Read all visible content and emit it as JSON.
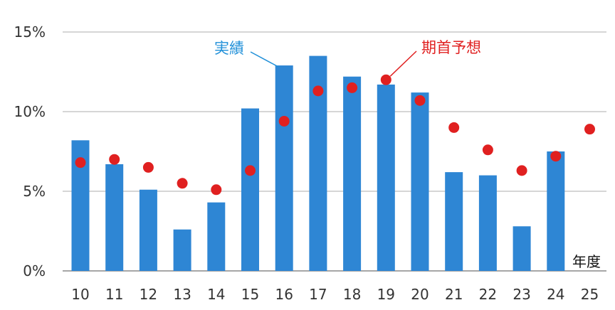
{
  "chart_data": {
    "type": "bar",
    "categories": [
      "10",
      "11",
      "12",
      "13",
      "14",
      "15",
      "16",
      "17",
      "18",
      "19",
      "20",
      "21",
      "22",
      "23",
      "24",
      "25"
    ],
    "series": [
      {
        "name": "実績",
        "type": "bar",
        "values": [
          8.2,
          6.7,
          5.1,
          2.6,
          4.3,
          10.2,
          12.9,
          13.5,
          12.2,
          11.7,
          11.2,
          6.2,
          6.0,
          2.8,
          7.5,
          null
        ],
        "color": "#2E86D4"
      },
      {
        "name": "期首予想",
        "type": "scatter",
        "values": [
          6.8,
          7.0,
          6.5,
          5.5,
          5.1,
          6.3,
          9.4,
          11.3,
          11.5,
          12.0,
          10.7,
          9.0,
          7.6,
          6.3,
          7.2,
          8.9
        ],
        "color": "#E02020"
      }
    ],
    "xlabel": "年度",
    "ylabel": "",
    "ylim": [
      0,
      15
    ],
    "yticks": [
      "0%",
      "5%",
      "10%",
      "15%"
    ],
    "grid": true,
    "annotations": [
      {
        "text": "実績",
        "color": "#1F8FD8"
      },
      {
        "text": "期首予想",
        "color": "#E02020"
      }
    ]
  }
}
